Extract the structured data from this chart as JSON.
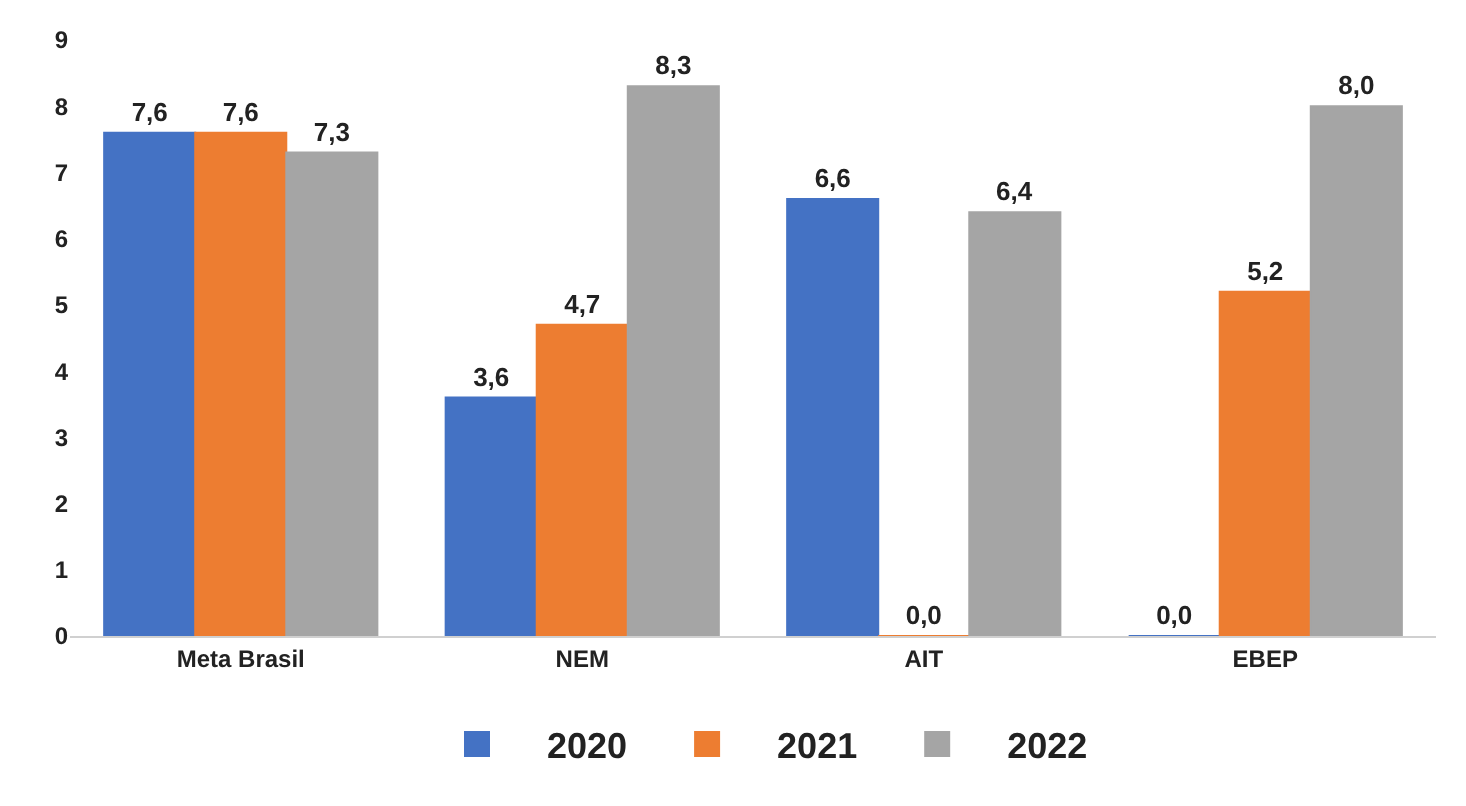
{
  "chart_data": {
    "type": "bar",
    "categories": [
      "Meta Brasil",
      "NEM",
      "AIT",
      "EBEP"
    ],
    "series": [
      {
        "name": "2020",
        "color": "#4472c4",
        "values": [
          7.6,
          3.6,
          6.6,
          0.0
        ],
        "value_labels": [
          "7,6",
          "3,6",
          "6,6",
          "0,0"
        ]
      },
      {
        "name": "2021",
        "color": "#ed7d31",
        "values": [
          7.6,
          4.7,
          0.0,
          5.2
        ],
        "value_labels": [
          "7,6",
          "4,7",
          "0,0",
          "5,2"
        ]
      },
      {
        "name": "2022",
        "color": "#a5a5a5",
        "values": [
          7.3,
          8.3,
          6.4,
          8.0
        ],
        "value_labels": [
          "7,3",
          "8,3",
          "6,4",
          "8,0"
        ]
      }
    ],
    "ylim": [
      0,
      9
    ],
    "yticks": [
      0,
      1,
      2,
      3,
      4,
      5,
      6,
      7,
      8,
      9
    ],
    "legend": "bottom"
  }
}
